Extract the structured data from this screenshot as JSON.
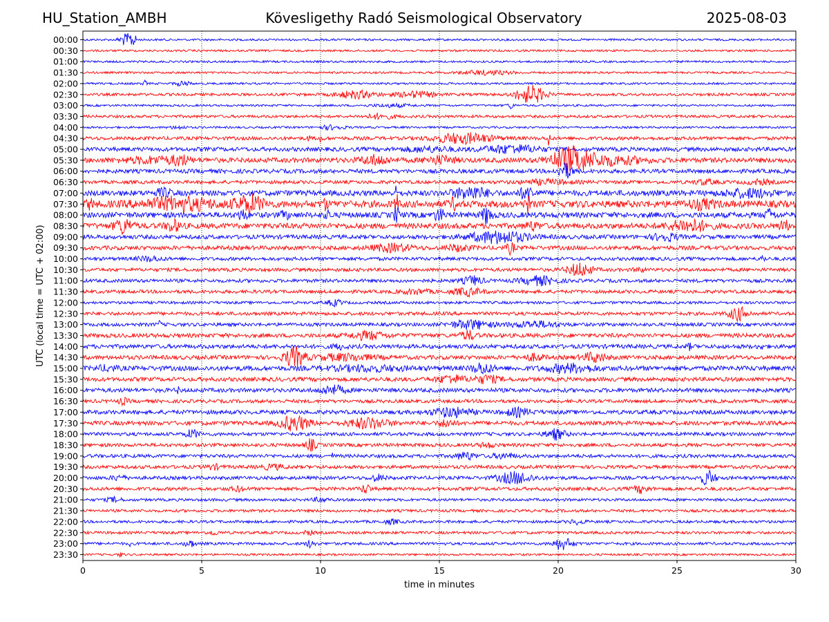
{
  "header": {
    "station": "HU_Station_AMBH",
    "observatory": "Kövesligethy Radó Seismological Observatory",
    "date": "2025-08-03"
  },
  "chart_data": {
    "type": "line",
    "xlabel": "time in minutes",
    "ylabel": "UTC (local time = UTC + 02:00)",
    "xlim": [
      0,
      30
    ],
    "x_ticks": [
      0,
      5,
      10,
      15,
      20,
      25,
      30
    ],
    "grid": "vertical dotted at x ticks",
    "colors": {
      "even_rows": "#0000ff",
      "odd_rows": "#ff0000"
    },
    "row_labels": [
      "00:00",
      "00:30",
      "01:00",
      "01:30",
      "02:00",
      "02:30",
      "03:00",
      "03:30",
      "04:00",
      "04:30",
      "05:00",
      "05:30",
      "06:00",
      "06:30",
      "07:00",
      "07:30",
      "08:00",
      "08:30",
      "09:00",
      "09:30",
      "10:00",
      "10:30",
      "11:00",
      "11:30",
      "12:00",
      "12:30",
      "13:00",
      "13:30",
      "14:00",
      "14:30",
      "15:00",
      "15:30",
      "16:00",
      "16:30",
      "17:00",
      "17:30",
      "18:00",
      "18:30",
      "19:00",
      "19:30",
      "20:00",
      "20:30",
      "21:00",
      "21:30",
      "22:00",
      "22:30",
      "23:00",
      "23:30"
    ],
    "noise_level": [
      1.5,
      1.5,
      1.5,
      1.5,
      1.5,
      2,
      1.5,
      2,
      1.5,
      2.5,
      3,
      3.5,
      3,
      2.5,
      4,
      5,
      4,
      4,
      3,
      3,
      2.5,
      2.5,
      2.5,
      2.5,
      2,
      2.5,
      2.5,
      3,
      3,
      3,
      3.5,
      3,
      3,
      2.5,
      3,
      3,
      2.5,
      2.5,
      2.5,
      2.5,
      2.5,
      2.5,
      2,
      2,
      2,
      2,
      2,
      1.5
    ],
    "events": [
      [
        [
          1.8,
          8,
          0.25
        ],
        [
          2.1,
          8,
          0.15
        ]
      ],
      [],
      [],
      [
        [
          17,
          3,
          1
        ]
      ],
      [
        [
          2.6,
          4,
          0.08
        ],
        [
          4.2,
          3,
          0.3
        ]
      ],
      [
        [
          11.5,
          5,
          0.8
        ],
        [
          14,
          4,
          0.8
        ],
        [
          19,
          10,
          0.5
        ],
        [
          18.5,
          6,
          0.4
        ]
      ],
      [
        [
          18,
          4,
          0.15
        ],
        [
          13,
          2,
          0.8
        ]
      ],
      [
        [
          12.5,
          3,
          0.6
        ]
      ],
      [
        [
          4,
          2,
          0.3
        ],
        [
          10.5,
          3,
          0.5
        ]
      ],
      [
        [
          16,
          7,
          1.2
        ],
        [
          10,
          6,
          0.05
        ],
        [
          9.5,
          5,
          0.05
        ],
        [
          19.6,
          14,
          0.05
        ]
      ],
      [
        [
          18,
          5,
          1.2
        ],
        [
          14.5,
          3,
          1
        ]
      ],
      [
        [
          20.5,
          16,
          0.8
        ],
        [
          4.1,
          6,
          0.3
        ],
        [
          12.3,
          6,
          0.6
        ],
        [
          15,
          5,
          0.6
        ],
        [
          22,
          6,
          1.5
        ],
        [
          3,
          4,
          1.2
        ]
      ],
      [
        [
          20.3,
          10,
          0.3
        ]
      ],
      [
        [
          19.5,
          3,
          1
        ],
        [
          28.5,
          3,
          0.5
        ],
        [
          26.2,
          3,
          0.5
        ]
      ],
      [
        [
          16.3,
          8,
          0.7
        ],
        [
          18.7,
          9,
          0.3
        ],
        [
          13.2,
          10,
          0.05
        ],
        [
          3.4,
          5,
          0.3
        ],
        [
          28,
          5,
          1
        ]
      ],
      [
        [
          7,
          11,
          0.6
        ],
        [
          4,
          8,
          1.5
        ],
        [
          13.2,
          12,
          0.1
        ],
        [
          18.7,
          12,
          0.1
        ],
        [
          15.6,
          6,
          0.2
        ],
        [
          10.2,
          7,
          0.1
        ],
        [
          26,
          5,
          0.6
        ],
        [
          0.3,
          6,
          0.15
        ]
      ],
      [
        [
          13.2,
          12,
          0.1
        ],
        [
          17,
          12,
          0.2
        ],
        [
          15,
          8,
          0.2
        ],
        [
          10.3,
          7,
          0.1
        ],
        [
          8.5,
          6,
          0.15
        ],
        [
          6.7,
          6,
          0.2
        ],
        [
          28.9,
          7,
          0.2
        ]
      ],
      [
        [
          1.7,
          10,
          0.35
        ],
        [
          3.8,
          7,
          0.3
        ],
        [
          25.5,
          8,
          0.8
        ],
        [
          29.5,
          7,
          0.2
        ],
        [
          18.9,
          5,
          0.3
        ]
      ],
      [
        [
          17.5,
          8,
          1.2
        ],
        [
          24.5,
          5,
          0.5
        ]
      ],
      [
        [
          13,
          5,
          0.8
        ],
        [
          18,
          8,
          0.15
        ],
        [
          15.8,
          4,
          0.5
        ]
      ],
      [
        [
          2.8,
          3,
          0.5
        ],
        [
          28.6,
          4,
          0.1
        ]
      ],
      [
        [
          20.9,
          9,
          0.5
        ],
        [
          23.4,
          3,
          0.2
        ]
      ],
      [
        [
          16.4,
          6,
          0.4
        ],
        [
          19.2,
          6,
          0.7
        ]
      ],
      [
        [
          16.2,
          5,
          0.6
        ],
        [
          14,
          3,
          0.6
        ]
      ],
      [
        [
          10.6,
          4,
          0.3
        ]
      ],
      [
        [
          27.6,
          9,
          0.4
        ]
      ],
      [
        [
          3.2,
          5,
          0.07
        ],
        [
          16.3,
          6,
          0.8
        ],
        [
          19,
          4,
          1
        ]
      ],
      [
        [
          16.2,
          6,
          0.3
        ],
        [
          12,
          5,
          0.7
        ]
      ],
      [
        [
          10.8,
          3,
          0.3
        ],
        [
          25.5,
          4,
          0.1
        ],
        [
          28.5,
          4,
          0.1
        ]
      ],
      [
        [
          8.9,
          14,
          0.4
        ],
        [
          21.5,
          6,
          0.5
        ],
        [
          11,
          4,
          1.2
        ],
        [
          19,
          4,
          0.4
        ]
      ],
      [
        [
          16.8,
          7,
          0.4
        ],
        [
          20.5,
          5,
          1
        ],
        [
          12,
          3,
          1.5
        ],
        [
          1,
          3,
          0.4
        ]
      ],
      [
        [
          15.5,
          5,
          0.6
        ],
        [
          17,
          5,
          0.5
        ]
      ],
      [
        [
          10.5,
          6,
          0.5
        ],
        [
          4,
          3,
          0.1
        ]
      ],
      [
        [
          1.7,
          4,
          0.2
        ]
      ],
      [
        [
          15.5,
          6,
          0.8
        ],
        [
          18.3,
          5,
          0.5
        ]
      ],
      [
        [
          8.9,
          10,
          0.6
        ],
        [
          12,
          7,
          0.8
        ],
        [
          15.3,
          5,
          0.3
        ]
      ],
      [
        [
          4.6,
          6,
          0.25
        ],
        [
          19.9,
          7,
          0.4
        ]
      ],
      [
        [
          9.6,
          8,
          0.2
        ],
        [
          17,
          3,
          0.3
        ]
      ],
      [
        [
          16.1,
          5,
          0.4
        ],
        [
          10.5,
          3,
          0.05
        ],
        [
          17.7,
          3,
          0.5
        ]
      ],
      [
        [
          5.5,
          3,
          0.3
        ],
        [
          8,
          3,
          0.5
        ]
      ],
      [
        [
          18.2,
          8,
          0.7
        ],
        [
          12.4,
          4,
          0.3
        ],
        [
          26.3,
          10,
          0.3
        ],
        [
          1.5,
          3,
          0.3
        ]
      ],
      [
        [
          11.9,
          6,
          0.2
        ],
        [
          6.5,
          3,
          0.3
        ],
        [
          23.5,
          5,
          0.3
        ]
      ],
      [
        [
          1.3,
          3,
          0.3
        ],
        [
          10,
          3,
          0.3
        ]
      ],
      [],
      [
        [
          13,
          3,
          0.3
        ],
        [
          20.8,
          3,
          0.3
        ]
      ],
      [
        [
          5.5,
          3,
          0.2
        ],
        [
          9.5,
          3,
          0.2
        ]
      ],
      [
        [
          20.2,
          8,
          0.4
        ],
        [
          4.5,
          5,
          0.2
        ],
        [
          9.6,
          5,
          0.2
        ],
        [
          2,
          3,
          0.05
        ]
      ],
      [
        [
          1.6,
          3,
          0.1
        ]
      ]
    ]
  }
}
